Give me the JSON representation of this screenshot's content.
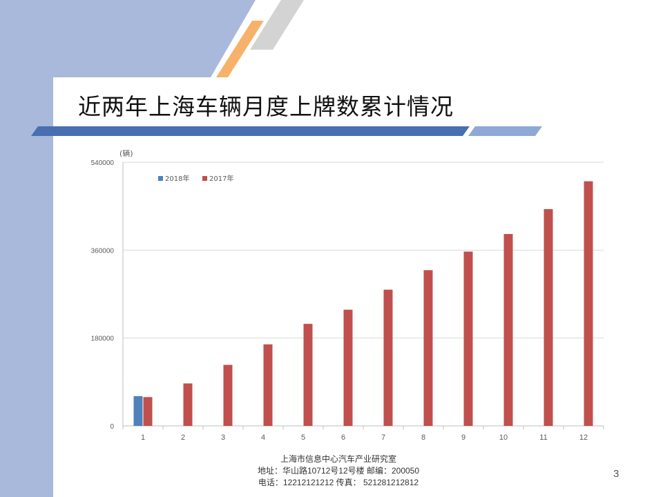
{
  "slide": {
    "title": "近两年上海车辆月度上牌数累计情况",
    "page_number": "3",
    "colors": {
      "side_band": "#a8b9dc",
      "accent_orange": "#f6b26b",
      "rule_blue": "#4a6fb0"
    }
  },
  "footer": {
    "line1": "上海市信息中心汽车产业研究室",
    "line2": "地址：华山路10712号12号楼     邮编：200050",
    "line3": "电话：12212121212   传真：  521281212812"
  },
  "chart_data": {
    "type": "bar",
    "ylabel": "(辆)",
    "ylim": [
      0,
      540000
    ],
    "yticks": [
      "0",
      "180000",
      "360000",
      "540000"
    ],
    "categories": [
      "1",
      "2",
      "3",
      "4",
      "5",
      "6",
      "7",
      "8",
      "9",
      "10",
      "11",
      "12"
    ],
    "grid": true,
    "legend_position": "top-left",
    "series": [
      {
        "name": "2018年",
        "color": "#4f81bd",
        "values": [
          61000,
          null,
          null,
          null,
          null,
          null,
          null,
          null,
          null,
          null,
          null,
          null
        ]
      },
      {
        "name": "2017年",
        "color": "#c0504d",
        "values": [
          59000,
          87000,
          125000,
          167000,
          209000,
          238000,
          279000,
          319000,
          357000,
          393000,
          444000,
          501000
        ]
      }
    ]
  }
}
